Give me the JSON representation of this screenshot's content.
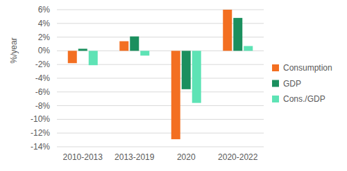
{
  "chart_data": {
    "type": "bar",
    "y_label": "%/year",
    "categories": [
      "2010-2013",
      "2013-2019",
      "2020",
      "2020-2022"
    ],
    "series": [
      {
        "name": "Consumption",
        "color": "#f36f21",
        "values": [
          -1.8,
          1.4,
          -12.9,
          6.0
        ]
      },
      {
        "name": "GDP",
        "color": "#1b8f5e",
        "values": [
          0.3,
          2.1,
          -5.6,
          4.8
        ]
      },
      {
        "name": "Cons./GDP",
        "color": "#5ee3b5",
        "values": [
          -2.1,
          -0.7,
          -7.6,
          0.7
        ]
      }
    ],
    "ylim": [
      -14,
      6
    ],
    "yticks": [
      {
        "value": -14,
        "label": "-14%"
      },
      {
        "value": -12,
        "label": "-12%"
      },
      {
        "value": -10,
        "label": "-10%"
      },
      {
        "value": -8,
        "label": "-8%"
      },
      {
        "value": -6,
        "label": "-6%"
      },
      {
        "value": -4,
        "label": "-4%"
      },
      {
        "value": -2,
        "label": "-2%"
      },
      {
        "value": 0,
        "label": "0%"
      },
      {
        "value": 2,
        "label": "2%"
      },
      {
        "value": 4,
        "label": "4%"
      },
      {
        "value": 6,
        "label": "6%"
      }
    ],
    "grid": true,
    "legend": "right"
  }
}
